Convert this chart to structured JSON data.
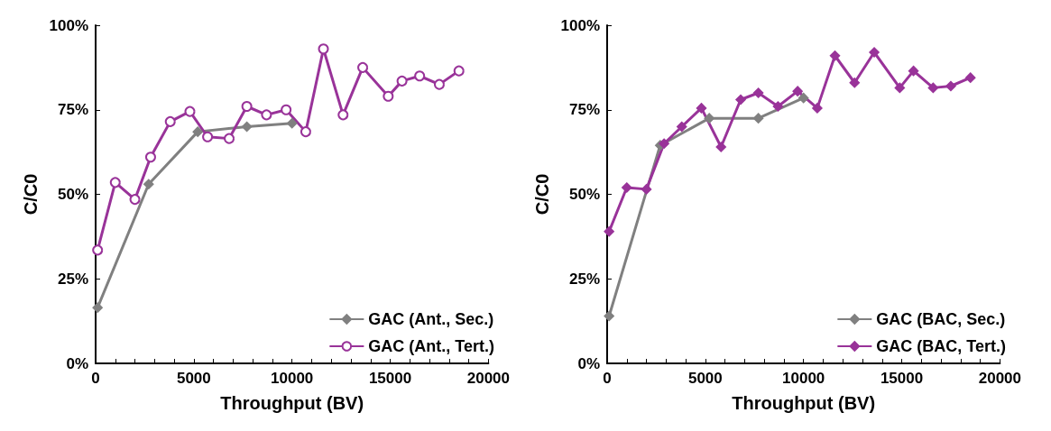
{
  "chart_data": [
    {
      "type": "line",
      "xlabel": "Throughput (BV)",
      "ylabel": "C/C0",
      "xlim": [
        0,
        20000
      ],
      "xticks": [
        0,
        5000,
        10000,
        15000,
        20000
      ],
      "ylim": [
        0,
        100
      ],
      "yticks": [
        {
          "value": 0,
          "label": "0%"
        },
        {
          "value": 25,
          "label": "25%"
        },
        {
          "value": 50,
          "label": "50%"
        },
        {
          "value": 75,
          "label": "75%"
        },
        {
          "value": 100,
          "label": "100%"
        }
      ],
      "grid": false,
      "legend": "bottom right",
      "series": [
        {
          "name": "GAC (Ant., Sec.)",
          "color": "#808080",
          "marker": "diamond",
          "x": [
            100,
            2700,
            5200,
            7700,
            10000
          ],
          "values": [
            16.5,
            53,
            68.5,
            70,
            71
          ]
        },
        {
          "name": "GAC (Ant., Tert.)",
          "color": "#993399",
          "marker": "circle",
          "x": [
            100,
            1000,
            2000,
            2800,
            3800,
            4800,
            5700,
            6800,
            7700,
            8700,
            9700,
            10700,
            11600,
            12600,
            13600,
            14900,
            15600,
            16500,
            17500,
            18500
          ],
          "values": [
            33.5,
            53.5,
            48.5,
            61,
            71.5,
            74.5,
            67,
            66.5,
            76,
            73.5,
            75,
            68.5,
            93,
            73.5,
            87.5,
            79,
            83.5,
            85,
            82.5,
            86.5
          ]
        }
      ]
    },
    {
      "type": "line",
      "xlabel": "Throughput (BV)",
      "ylabel": "C/C0",
      "xlim": [
        0,
        20000
      ],
      "xticks": [
        0,
        5000,
        10000,
        15000,
        20000
      ],
      "ylim": [
        0,
        100
      ],
      "yticks": [
        {
          "value": 0,
          "label": "0%"
        },
        {
          "value": 25,
          "label": "25%"
        },
        {
          "value": 50,
          "label": "50%"
        },
        {
          "value": 75,
          "label": "75%"
        },
        {
          "value": 100,
          "label": "100%"
        }
      ],
      "grid": false,
      "legend": "bottom right",
      "series": [
        {
          "name": "GAC (BAC, Sec.)",
          "color": "#808080",
          "marker": "diamond",
          "x": [
            100,
            2700,
            5200,
            7700,
            10000
          ],
          "values": [
            14,
            64.5,
            72.5,
            72.5,
            78.5
          ]
        },
        {
          "name": "GAC (BAC, Tert.)",
          "color": "#993399",
          "marker": "diamond",
          "x": [
            100,
            1000,
            2000,
            2900,
            3800,
            4800,
            5800,
            6800,
            7700,
            8700,
            9700,
            10700,
            11600,
            12600,
            13600,
            14900,
            15600,
            16600,
            17500,
            18500
          ],
          "values": [
            39,
            52,
            51.5,
            65,
            70,
            75.5,
            64,
            78,
            80,
            76,
            80.5,
            75.5,
            91,
            83,
            92,
            81.5,
            86.5,
            81.5,
            82,
            84.5
          ]
        }
      ]
    }
  ]
}
